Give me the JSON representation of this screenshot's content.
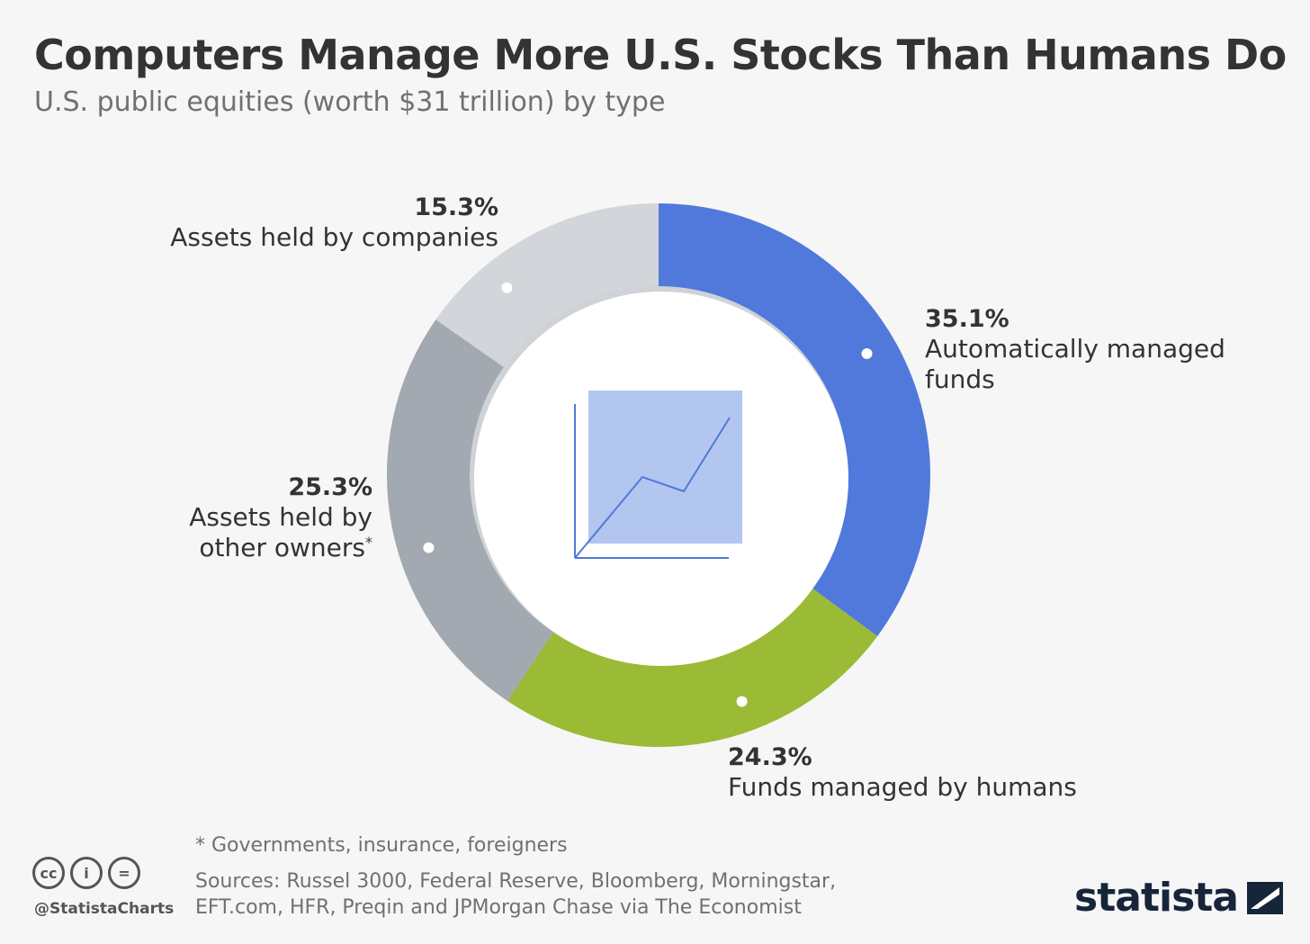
{
  "header": {
    "title": "Computers Manage More U.S. Stocks Than Humans Do",
    "subtitle": "U.S. public equities (worth $31 trillion) by type"
  },
  "chart_data": {
    "type": "pie",
    "variant": "donut",
    "title": "Computers Manage More U.S. Stocks Than Humans Do",
    "subtitle": "U.S. public equities (worth $31 trillion) by type",
    "unit": "%",
    "slices": [
      {
        "name": "Automatically managed funds",
        "value": 35.1,
        "label": "35.1%",
        "color": "#5079db",
        "label_lines": [
          "Automatically managed",
          "funds"
        ]
      },
      {
        "name": "Funds managed by humans",
        "value": 24.3,
        "label": "24.3%",
        "color": "#9bbb37",
        "label_lines": [
          "Funds managed by humans"
        ]
      },
      {
        "name": "Assets held by other owners*",
        "value": 25.3,
        "label": "25.3%",
        "color": "#a2a9b0",
        "label_lines": [
          "Assets held by",
          "other owners"
        ],
        "marker": "*"
      },
      {
        "name": "Assets held by companies",
        "value": 15.3,
        "label": "15.3%",
        "color": "#d2d5d9",
        "label_lines": [
          "Assets held by companies"
        ]
      }
    ]
  },
  "footer": {
    "footnote": "* Governments, insurance, foreigners",
    "sources_line1": "Sources: Russel 3000, Federal Reserve, Bloomberg, Morningstar,",
    "sources_line2": "EFT.com, HFR, Preqin and JPMorgan Chase via The Economist",
    "handle": "@StatistaCharts",
    "brand": "statista",
    "license_icons": [
      {
        "name": "cc-icon",
        "glyph": "cc"
      },
      {
        "name": "attribution-icon",
        "glyph": "i"
      },
      {
        "name": "no-derivatives-icon",
        "glyph": "="
      }
    ]
  }
}
